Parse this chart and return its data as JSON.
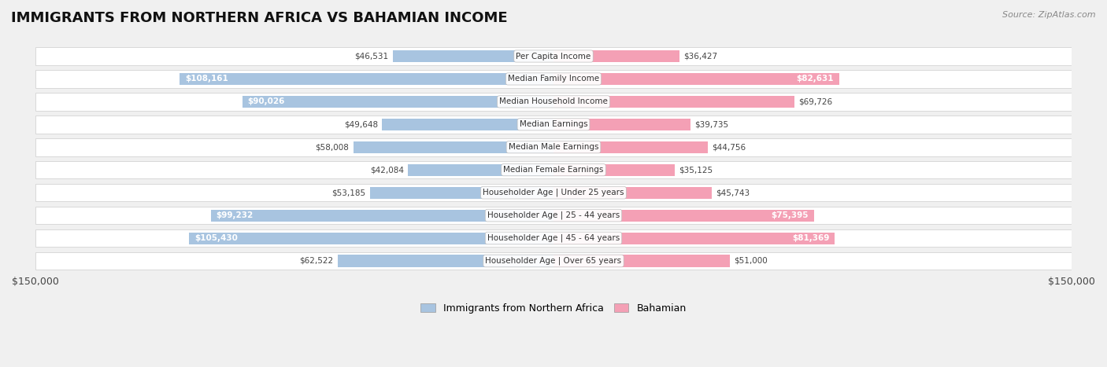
{
  "title": "IMMIGRANTS FROM NORTHERN AFRICA VS BAHAMIAN INCOME",
  "source": "Source: ZipAtlas.com",
  "categories": [
    "Per Capita Income",
    "Median Family Income",
    "Median Household Income",
    "Median Earnings",
    "Median Male Earnings",
    "Median Female Earnings",
    "Householder Age | Under 25 years",
    "Householder Age | 25 - 44 years",
    "Householder Age | 45 - 64 years",
    "Householder Age | Over 65 years"
  ],
  "left_values": [
    46531,
    108161,
    90026,
    49648,
    58008,
    42084,
    53185,
    99232,
    105430,
    62522
  ],
  "right_values": [
    36427,
    82631,
    69726,
    39735,
    44756,
    35125,
    45743,
    75395,
    81369,
    51000
  ],
  "left_labels": [
    "$46,531",
    "$108,161",
    "$90,026",
    "$49,648",
    "$58,008",
    "$42,084",
    "$53,185",
    "$99,232",
    "$105,430",
    "$62,522"
  ],
  "right_labels": [
    "$36,427",
    "$82,631",
    "$69,726",
    "$39,735",
    "$44,756",
    "$35,125",
    "$45,743",
    "$75,395",
    "$81,369",
    "$51,000"
  ],
  "max_value": 150000,
  "left_color": "#a8c4e0",
  "right_color": "#f4a0b5",
  "legend_left": "Immigrants from Northern Africa",
  "legend_right": "Bahamian",
  "background_color": "#f0f0f0",
  "row_bg_color": "#ffffff",
  "row_alt_color": "#e8e8e8",
  "label_inside_threshold": 70000,
  "axis_label_left": "$150,000",
  "axis_label_right": "$150,000",
  "title_fontsize": 13,
  "source_fontsize": 8,
  "label_fontsize": 7.5,
  "cat_fontsize": 7.5
}
